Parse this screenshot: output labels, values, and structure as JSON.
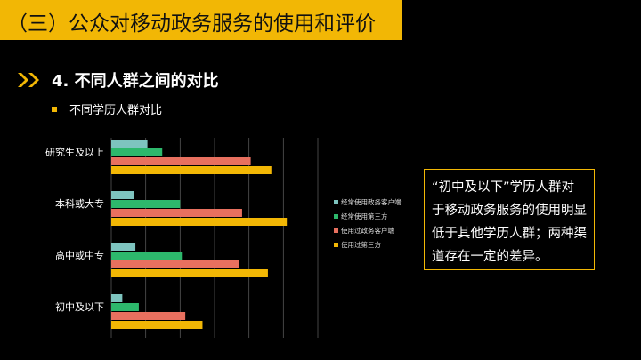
{
  "title": "（三）公众对移动政务服务的使用和评价",
  "section": {
    "icon": "double-chevron-right-icon",
    "text": "4. 不同人群之间的对比"
  },
  "subtitle": "不同学历人群对比",
  "note": "“初中及以下”学历人群对于移动政务服务的使用明显低于其他学历人群；两种渠道存在一定的差异。",
  "colors": {
    "accent": "#f2b705",
    "background": "#000000"
  },
  "chart_data": {
    "type": "bar",
    "orientation": "horizontal",
    "categories": [
      "研究生及以上",
      "本科或大专",
      "高中或中专",
      "初中及以下"
    ],
    "series": [
      {
        "name": "经常使用政务客户端",
        "color": "#7ec4bf",
        "values": [
          10.5,
          6.5,
          7.0,
          3.2
        ]
      },
      {
        "name": "经常使用第三方",
        "color": "#2db86c",
        "values": [
          14.8,
          20.0,
          20.5,
          8.0
        ]
      },
      {
        "name": "使用过政务客户端",
        "color": "#e8705f",
        "values": [
          40.5,
          38.0,
          37.0,
          21.5
        ]
      },
      {
        "name": "使用过第三方",
        "color": "#f2b705",
        "values": [
          46.5,
          51.0,
          45.5,
          26.5
        ]
      }
    ],
    "xticks": [
      "0.00%",
      "10.00%",
      "20.00%",
      "30.00%",
      "40.00%",
      "50.00%",
      "60.00%"
    ],
    "xlim": [
      0,
      60
    ],
    "grid": true,
    "legend": "right"
  }
}
